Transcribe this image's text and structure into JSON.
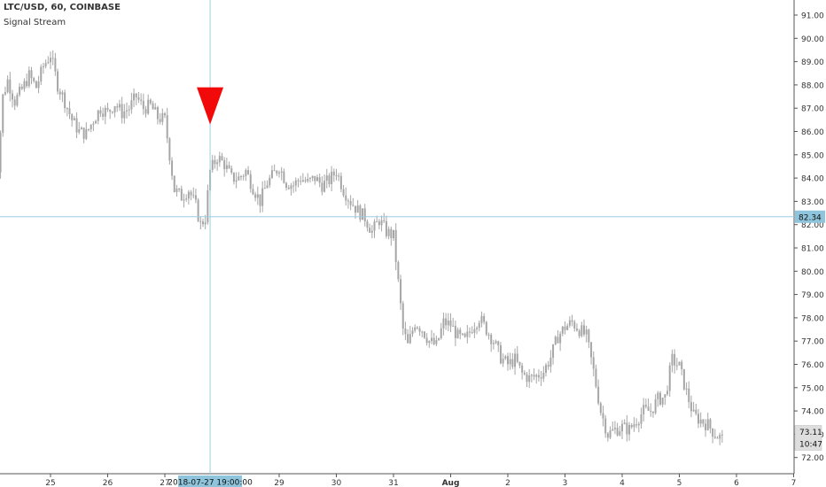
{
  "header": {
    "symbol_line": "LTC/USD, 60, COINBASE",
    "indicator": "Signal Stream"
  },
  "colors": {
    "candle": "#a6a6a6",
    "crosshair": "#9ecde3",
    "crosshair_label_bg": "#8ec5dc",
    "marker": "#f20a0a",
    "price_label_bg": "#dedede"
  },
  "chart_data": {
    "type": "candlestick",
    "title": "LTC/USD, 60, COINBASE",
    "ylim": [
      71.5,
      91.5
    ],
    "y_ticks": [
      "91.00",
      "90.00",
      "89.00",
      "88.00",
      "87.00",
      "86.00",
      "85.00",
      "84.00",
      "83.00",
      "82.00",
      "81.00",
      "80.00",
      "79.00",
      "78.00",
      "77.00",
      "76.00",
      "75.00",
      "74.00",
      "73.00",
      "72.00"
    ],
    "x_ticks": [
      "25",
      "26",
      "27",
      "2018-07-27 19:00:00",
      "29",
      "30",
      "31",
      "Aug",
      "2",
      "3",
      "4",
      "5",
      "6",
      "7"
    ],
    "close_path": [
      [
        "24 00:00",
        82.2
      ],
      [
        "24 02:00",
        84.5
      ],
      [
        "24 04:00",
        87.5
      ],
      [
        "24 06:00",
        88.2
      ],
      [
        "24 09:00",
        87.3
      ],
      [
        "24 12:00",
        87.8
      ],
      [
        "24 15:00",
        88.4
      ],
      [
        "24 18:00",
        87.9
      ],
      [
        "24 21:00",
        88.8
      ],
      [
        "25 00:00",
        89.3
      ],
      [
        "25 03:00",
        88.0
      ],
      [
        "25 06:00",
        87.3
      ],
      [
        "25 09:00",
        86.5
      ],
      [
        "25 12:00",
        86.0
      ],
      [
        "25 15:00",
        85.9
      ],
      [
        "25 18:00",
        86.5
      ],
      [
        "25 21:00",
        87.0
      ],
      [
        "26 00:00",
        86.8
      ],
      [
        "26 03:00",
        87.2
      ],
      [
        "26 06:00",
        86.8
      ],
      [
        "26 09:00",
        87.0
      ],
      [
        "26 12:00",
        87.5
      ],
      [
        "26 15:00",
        87.0
      ],
      [
        "26 18:00",
        87.1
      ],
      [
        "26 21:00",
        86.6
      ],
      [
        "27 00:00",
        86.5
      ],
      [
        "27 02:00",
        85.0
      ],
      [
        "27 04:00",
        83.5
      ],
      [
        "27 07:00",
        83.2
      ],
      [
        "27 10:00",
        83.5
      ],
      [
        "27 13:00",
        82.8
      ],
      [
        "27 15:00",
        82.0
      ],
      [
        "27 17:00",
        82.3
      ],
      [
        "27 19:00",
        84.3
      ],
      [
        "27 22:00",
        84.9
      ],
      [
        "28 01:00",
        84.6
      ],
      [
        "28 04:00",
        84.0
      ],
      [
        "28 07:00",
        84.0
      ],
      [
        "28 10:00",
        84.3
      ],
      [
        "28 13:00",
        83.6
      ],
      [
        "28 16:00",
        83.0
      ],
      [
        "28 19:00",
        83.8
      ],
      [
        "28 22:00",
        84.2
      ],
      [
        "29 00:00",
        84.5
      ],
      [
        "29 03:00",
        83.8
      ],
      [
        "29 06:00",
        83.7
      ],
      [
        "29 09:00",
        84.0
      ],
      [
        "29 12:00",
        83.8
      ],
      [
        "29 15:00",
        84.0
      ],
      [
        "29 18:00",
        83.7
      ],
      [
        "29 21:00",
        83.9
      ],
      [
        "30 00:00",
        84.3
      ],
      [
        "30 03:00",
        83.5
      ],
      [
        "30 06:00",
        83.0
      ],
      [
        "30 09:00",
        82.6
      ],
      [
        "30 12:00",
        82.3
      ],
      [
        "30 15:00",
        81.7
      ],
      [
        "30 18:00",
        82.2
      ],
      [
        "30 21:00",
        81.7
      ],
      [
        "31 00:00",
        81.5
      ],
      [
        "31 02:00",
        79.5
      ],
      [
        "31 04:00",
        77.5
      ],
      [
        "31 06:00",
        76.8
      ],
      [
        "31 09:00",
        77.8
      ],
      [
        "31 12:00",
        77.5
      ],
      [
        "31 15:00",
        77.0
      ],
      [
        "31 18:00",
        76.8
      ],
      [
        "31 21:00",
        77.8
      ],
      [
        "01 00:00",
        77.7
      ],
      [
        "01 03:00",
        77.2
      ],
      [
        "01 06:00",
        77.0
      ],
      [
        "01 09:00",
        77.6
      ],
      [
        "01 12:00",
        78.0
      ],
      [
        "01 15:00",
        77.5
      ],
      [
        "01 18:00",
        77.0
      ],
      [
        "01 21:00",
        76.3
      ],
      [
        "02 00:00",
        76.0
      ],
      [
        "02 03:00",
        76.2
      ],
      [
        "02 06:00",
        75.6
      ],
      [
        "02 09:00",
        75.4
      ],
      [
        "02 12:00",
        75.5
      ],
      [
        "02 15:00",
        75.7
      ],
      [
        "02 18:00",
        76.3
      ],
      [
        "02 21:00",
        77.2
      ],
      [
        "03 00:00",
        77.6
      ],
      [
        "03 03:00",
        77.8
      ],
      [
        "03 06:00",
        77.5
      ],
      [
        "03 09:00",
        77.2
      ],
      [
        "03 12:00",
        75.7
      ],
      [
        "03 15:00",
        74.0
      ],
      [
        "03 18:00",
        73.0
      ],
      [
        "03 21:00",
        73.2
      ],
      [
        "04 00:00",
        73.3
      ],
      [
        "04 03:00",
        73.2
      ],
      [
        "04 06:00",
        73.6
      ],
      [
        "04 09:00",
        74.0
      ],
      [
        "04 12:00",
        74.0
      ],
      [
        "04 15:00",
        74.5
      ],
      [
        "04 18:00",
        74.6
      ],
      [
        "04 21:00",
        76.2
      ],
      [
        "05 00:00",
        75.9
      ],
      [
        "05 03:00",
        74.8
      ],
      [
        "05 06:00",
        73.8
      ],
      [
        "05 09:00",
        73.6
      ],
      [
        "05 12:00",
        73.4
      ],
      [
        "05 15:00",
        73.0
      ],
      [
        "05 18:00",
        72.8
      ]
    ],
    "signals": [
      {
        "type": "sell",
        "shape": "down-triangle",
        "x": "27 19:00",
        "price": 86.3
      }
    ],
    "horizontal_line": {
      "price": 82.34,
      "label": "82.34"
    },
    "vertical_line": {
      "x": "27 19:00",
      "label": "2018-07-27 19:00:00"
    },
    "last_price": {
      "price": 73.11,
      "label": "73.11",
      "countdown": "10:47"
    }
  }
}
